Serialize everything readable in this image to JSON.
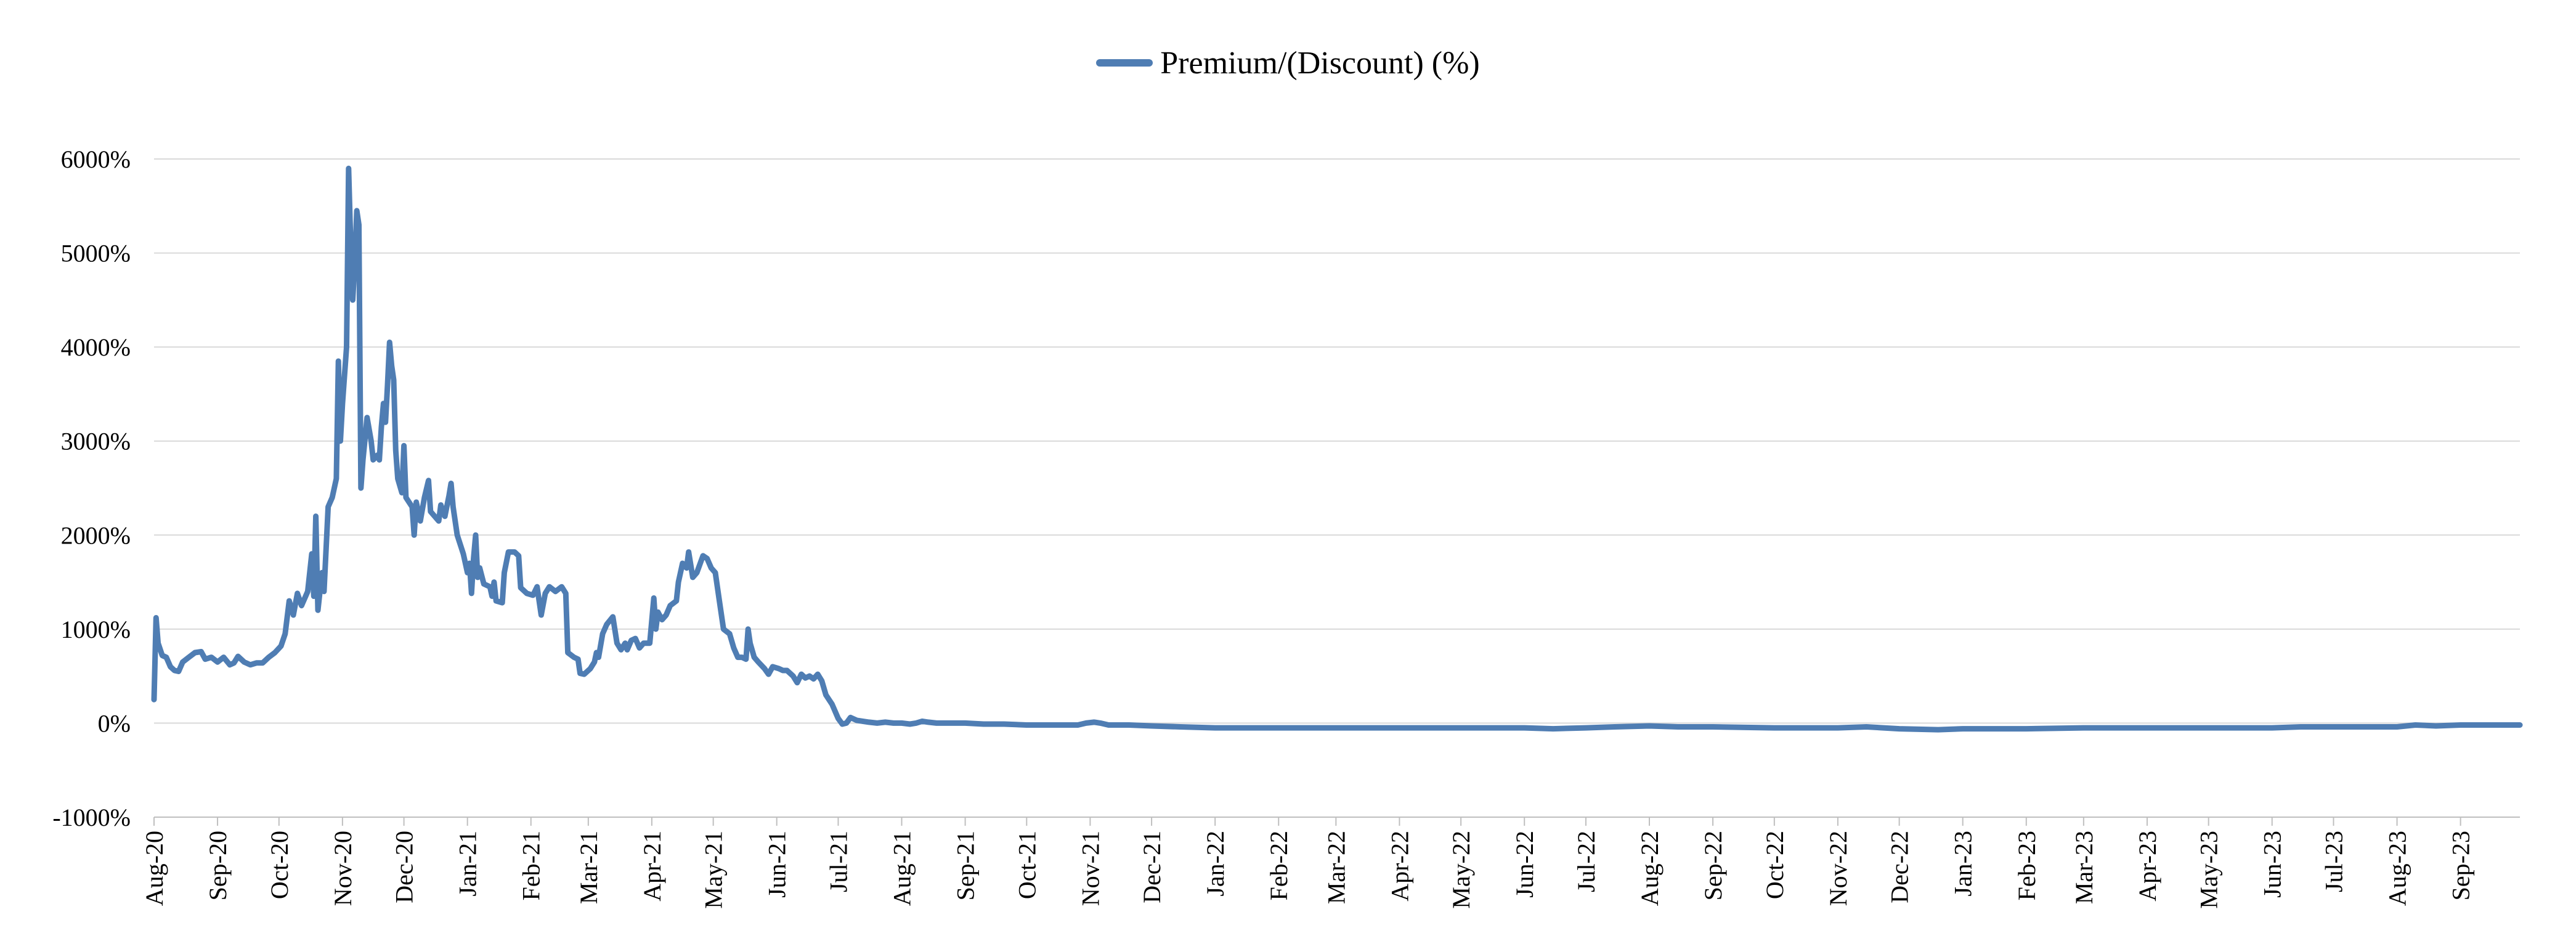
{
  "chart_data": {
    "type": "line",
    "title": "",
    "xlabel": "",
    "ylabel": "",
    "legend_position": "top-center",
    "grid": "horizontal",
    "ylim": [
      -1000,
      6000
    ],
    "y_ticks": [
      "-1000%",
      "0%",
      "1000%",
      "2000%",
      "3000%",
      "4000%",
      "5000%",
      "6000%"
    ],
    "y_tick_values": [
      -1000,
      0,
      1000,
      2000,
      3000,
      4000,
      5000,
      6000
    ],
    "x_ticks": [
      "Aug-20",
      "Sep-20",
      "Oct-20",
      "Nov-20",
      "Dec-20",
      "Jan-21",
      "Feb-21",
      "Mar-21",
      "Apr-21",
      "May-21",
      "Jun-21",
      "Jul-21",
      "Aug-21",
      "Sep-21",
      "Oct-21",
      "Nov-21",
      "Dec-21",
      "Jan-22",
      "Feb-22",
      "Mar-22",
      "Apr-22",
      "May-22",
      "Jun-22",
      "Jul-22",
      "Aug-22",
      "Sep-22",
      "Oct-22",
      "Nov-22",
      "Dec-22",
      "Jan-23",
      "Feb-23",
      "Mar-23",
      "Apr-23",
      "May-23",
      "Jun-23",
      "Jul-23",
      "Aug-23",
      "Sep-23"
    ],
    "xlim": [
      "2020-08-01",
      "2023-09-30"
    ],
    "series": [
      {
        "name": "Premium/(Discount) (%)",
        "color": "#4f7db3",
        "points": [
          [
            "2020-08-01",
            250
          ],
          [
            "2020-08-02",
            1120
          ],
          [
            "2020-08-03",
            850
          ],
          [
            "2020-08-05",
            720
          ],
          [
            "2020-08-07",
            700
          ],
          [
            "2020-08-09",
            600
          ],
          [
            "2020-08-11",
            560
          ],
          [
            "2020-08-13",
            550
          ],
          [
            "2020-08-15",
            650
          ],
          [
            "2020-08-18",
            700
          ],
          [
            "2020-08-21",
            750
          ],
          [
            "2020-08-24",
            760
          ],
          [
            "2020-08-26",
            680
          ],
          [
            "2020-08-29",
            700
          ],
          [
            "2020-09-01",
            650
          ],
          [
            "2020-09-04",
            700
          ],
          [
            "2020-09-07",
            620
          ],
          [
            "2020-09-09",
            640
          ],
          [
            "2020-09-11",
            710
          ],
          [
            "2020-09-14",
            650
          ],
          [
            "2020-09-17",
            620
          ],
          [
            "2020-09-20",
            640
          ],
          [
            "2020-09-23",
            640
          ],
          [
            "2020-09-26",
            700
          ],
          [
            "2020-09-29",
            750
          ],
          [
            "2020-10-02",
            820
          ],
          [
            "2020-10-04",
            950
          ],
          [
            "2020-10-06",
            1300
          ],
          [
            "2020-10-08",
            1150
          ],
          [
            "2020-10-10",
            1380
          ],
          [
            "2020-10-12",
            1250
          ],
          [
            "2020-10-15",
            1400
          ],
          [
            "2020-10-17",
            1800
          ],
          [
            "2020-10-18",
            1350
          ],
          [
            "2020-10-19",
            2200
          ],
          [
            "2020-10-20",
            1200
          ],
          [
            "2020-10-22",
            1600
          ],
          [
            "2020-10-23",
            1400
          ],
          [
            "2020-10-25",
            2300
          ],
          [
            "2020-10-27",
            2400
          ],
          [
            "2020-10-29",
            2600
          ],
          [
            "2020-10-30",
            3850
          ],
          [
            "2020-10-31",
            3000
          ],
          [
            "2020-11-01",
            3400
          ],
          [
            "2020-11-03",
            4000
          ],
          [
            "2020-11-04",
            5900
          ],
          [
            "2020-11-05",
            5100
          ],
          [
            "2020-11-06",
            4500
          ],
          [
            "2020-11-07",
            4900
          ],
          [
            "2020-11-08",
            5450
          ],
          [
            "2020-11-09",
            5300
          ],
          [
            "2020-11-10",
            2500
          ],
          [
            "2020-11-11",
            2800
          ],
          [
            "2020-11-13",
            3250
          ],
          [
            "2020-11-15",
            3000
          ],
          [
            "2020-11-16",
            2800
          ],
          [
            "2020-11-18",
            2850
          ],
          [
            "2020-11-19",
            2800
          ],
          [
            "2020-11-20",
            3150
          ],
          [
            "2020-11-21",
            3400
          ],
          [
            "2020-11-22",
            3200
          ],
          [
            "2020-11-23",
            3600
          ],
          [
            "2020-11-24",
            4050
          ],
          [
            "2020-11-25",
            3800
          ],
          [
            "2020-11-26",
            3650
          ],
          [
            "2020-11-27",
            2900
          ],
          [
            "2020-11-28",
            2600
          ],
          [
            "2020-11-30",
            2450
          ],
          [
            "2020-12-01",
            2950
          ],
          [
            "2020-12-02",
            2400
          ],
          [
            "2020-12-05",
            2300
          ],
          [
            "2020-12-06",
            2000
          ],
          [
            "2020-12-07",
            2350
          ],
          [
            "2020-12-09",
            2150
          ],
          [
            "2020-12-11",
            2400
          ],
          [
            "2020-12-13",
            2580
          ],
          [
            "2020-12-14",
            2250
          ],
          [
            "2020-12-16",
            2200
          ],
          [
            "2020-12-18",
            2150
          ],
          [
            "2020-12-19",
            2320
          ],
          [
            "2020-12-21",
            2200
          ],
          [
            "2020-12-23",
            2420
          ],
          [
            "2020-12-24",
            2550
          ],
          [
            "2020-12-25",
            2300
          ],
          [
            "2020-12-27",
            2000
          ],
          [
            "2020-12-30",
            1800
          ],
          [
            "2021-01-01",
            1600
          ],
          [
            "2021-01-02",
            1700
          ],
          [
            "2021-01-03",
            1380
          ],
          [
            "2021-01-04",
            1750
          ],
          [
            "2021-01-05",
            2000
          ],
          [
            "2021-01-06",
            1550
          ],
          [
            "2021-01-07",
            1650
          ],
          [
            "2021-01-09",
            1480
          ],
          [
            "2021-01-12",
            1450
          ],
          [
            "2021-01-13",
            1350
          ],
          [
            "2021-01-14",
            1500
          ],
          [
            "2021-01-15",
            1300
          ],
          [
            "2021-01-18",
            1280
          ],
          [
            "2021-01-19",
            1600
          ],
          [
            "2021-01-21",
            1820
          ],
          [
            "2021-01-24",
            1820
          ],
          [
            "2021-01-26",
            1780
          ],
          [
            "2021-01-27",
            1440
          ],
          [
            "2021-01-30",
            1380
          ],
          [
            "2021-02-02",
            1360
          ],
          [
            "2021-02-04",
            1450
          ],
          [
            "2021-02-06",
            1150
          ],
          [
            "2021-02-08",
            1380
          ],
          [
            "2021-02-10",
            1450
          ],
          [
            "2021-02-13",
            1400
          ],
          [
            "2021-02-16",
            1450
          ],
          [
            "2021-02-18",
            1380
          ],
          [
            "2021-02-19",
            750
          ],
          [
            "2021-02-22",
            700
          ],
          [
            "2021-02-24",
            680
          ],
          [
            "2021-02-25",
            530
          ],
          [
            "2021-02-27",
            520
          ],
          [
            "2021-03-02",
            580
          ],
          [
            "2021-03-04",
            650
          ],
          [
            "2021-03-05",
            750
          ],
          [
            "2021-03-06",
            700
          ],
          [
            "2021-03-08",
            950
          ],
          [
            "2021-03-10",
            1050
          ],
          [
            "2021-03-13",
            1130
          ],
          [
            "2021-03-15",
            850
          ],
          [
            "2021-03-17",
            780
          ],
          [
            "2021-03-19",
            850
          ],
          [
            "2021-03-20",
            780
          ],
          [
            "2021-03-22",
            880
          ],
          [
            "2021-03-24",
            900
          ],
          [
            "2021-03-26",
            800
          ],
          [
            "2021-03-28",
            850
          ],
          [
            "2021-03-31",
            850
          ],
          [
            "2021-04-02",
            1330
          ],
          [
            "2021-04-03",
            1000
          ],
          [
            "2021-04-04",
            1180
          ],
          [
            "2021-04-06",
            1100
          ],
          [
            "2021-04-08",
            1150
          ],
          [
            "2021-04-10",
            1250
          ],
          [
            "2021-04-13",
            1300
          ],
          [
            "2021-04-14",
            1500
          ],
          [
            "2021-04-16",
            1700
          ],
          [
            "2021-04-18",
            1650
          ],
          [
            "2021-04-19",
            1820
          ],
          [
            "2021-04-21",
            1550
          ],
          [
            "2021-04-23",
            1600
          ],
          [
            "2021-04-26",
            1780
          ],
          [
            "2021-04-28",
            1750
          ],
          [
            "2021-04-30",
            1650
          ],
          [
            "2021-05-02",
            1600
          ],
          [
            "2021-05-04",
            1300
          ],
          [
            "2021-05-06",
            1000
          ],
          [
            "2021-05-09",
            950
          ],
          [
            "2021-05-11",
            800
          ],
          [
            "2021-05-13",
            700
          ],
          [
            "2021-05-15",
            700
          ],
          [
            "2021-05-17",
            680
          ],
          [
            "2021-05-18",
            1000
          ],
          [
            "2021-05-19",
            850
          ],
          [
            "2021-05-21",
            700
          ],
          [
            "2021-05-23",
            650
          ],
          [
            "2021-05-26",
            580
          ],
          [
            "2021-05-28",
            520
          ],
          [
            "2021-05-30",
            600
          ],
          [
            "2021-06-02",
            580
          ],
          [
            "2021-06-04",
            560
          ],
          [
            "2021-06-06",
            560
          ],
          [
            "2021-06-09",
            500
          ],
          [
            "2021-06-11",
            430
          ],
          [
            "2021-06-13",
            520
          ],
          [
            "2021-06-15",
            480
          ],
          [
            "2021-06-17",
            500
          ],
          [
            "2021-06-19",
            470
          ],
          [
            "2021-06-21",
            520
          ],
          [
            "2021-06-23",
            450
          ],
          [
            "2021-06-25",
            300
          ],
          [
            "2021-06-28",
            200
          ],
          [
            "2021-07-01",
            50
          ],
          [
            "2021-07-03",
            -10
          ],
          [
            "2021-07-05",
            0
          ],
          [
            "2021-07-07",
            60
          ],
          [
            "2021-07-10",
            30
          ],
          [
            "2021-07-13",
            20
          ],
          [
            "2021-07-16",
            10
          ],
          [
            "2021-07-20",
            0
          ],
          [
            "2021-07-24",
            10
          ],
          [
            "2021-07-28",
            0
          ],
          [
            "2021-08-01",
            0
          ],
          [
            "2021-08-05",
            -10
          ],
          [
            "2021-08-08",
            0
          ],
          [
            "2021-08-11",
            20
          ],
          [
            "2021-08-14",
            10
          ],
          [
            "2021-08-18",
            0
          ],
          [
            "2021-08-24",
            0
          ],
          [
            "2021-09-01",
            0
          ],
          [
            "2021-09-10",
            -10
          ],
          [
            "2021-09-20",
            -10
          ],
          [
            "2021-10-01",
            -20
          ],
          [
            "2021-10-10",
            -20
          ],
          [
            "2021-10-20",
            -20
          ],
          [
            "2021-10-26",
            -20
          ],
          [
            "2021-10-30",
            0
          ],
          [
            "2021-11-03",
            10
          ],
          [
            "2021-11-06",
            0
          ],
          [
            "2021-11-10",
            -20
          ],
          [
            "2021-11-20",
            -20
          ],
          [
            "2021-12-01",
            -30
          ],
          [
            "2021-12-15",
            -40
          ],
          [
            "2022-01-01",
            -50
          ],
          [
            "2022-02-01",
            -50
          ],
          [
            "2022-03-01",
            -50
          ],
          [
            "2022-04-01",
            -50
          ],
          [
            "2022-05-01",
            -50
          ],
          [
            "2022-06-01",
            -50
          ],
          [
            "2022-06-15",
            -60
          ],
          [
            "2022-07-01",
            -50
          ],
          [
            "2022-07-15",
            -40
          ],
          [
            "2022-08-01",
            -30
          ],
          [
            "2022-08-15",
            -40
          ],
          [
            "2022-09-01",
            -40
          ],
          [
            "2022-10-01",
            -50
          ],
          [
            "2022-11-01",
            -50
          ],
          [
            "2022-11-15",
            -40
          ],
          [
            "2022-12-01",
            -60
          ],
          [
            "2022-12-20",
            -70
          ],
          [
            "2023-01-01",
            -60
          ],
          [
            "2023-02-01",
            -60
          ],
          [
            "2023-03-01",
            -50
          ],
          [
            "2023-04-01",
            -50
          ],
          [
            "2023-05-01",
            -50
          ],
          [
            "2023-06-01",
            -50
          ],
          [
            "2023-06-15",
            -40
          ],
          [
            "2023-07-01",
            -40
          ],
          [
            "2023-07-15",
            -40
          ],
          [
            "2023-08-01",
            -40
          ],
          [
            "2023-08-10",
            -20
          ],
          [
            "2023-08-20",
            -30
          ],
          [
            "2023-09-01",
            -20
          ],
          [
            "2023-09-15",
            -20
          ],
          [
            "2023-09-30",
            -20
          ]
        ]
      }
    ]
  }
}
